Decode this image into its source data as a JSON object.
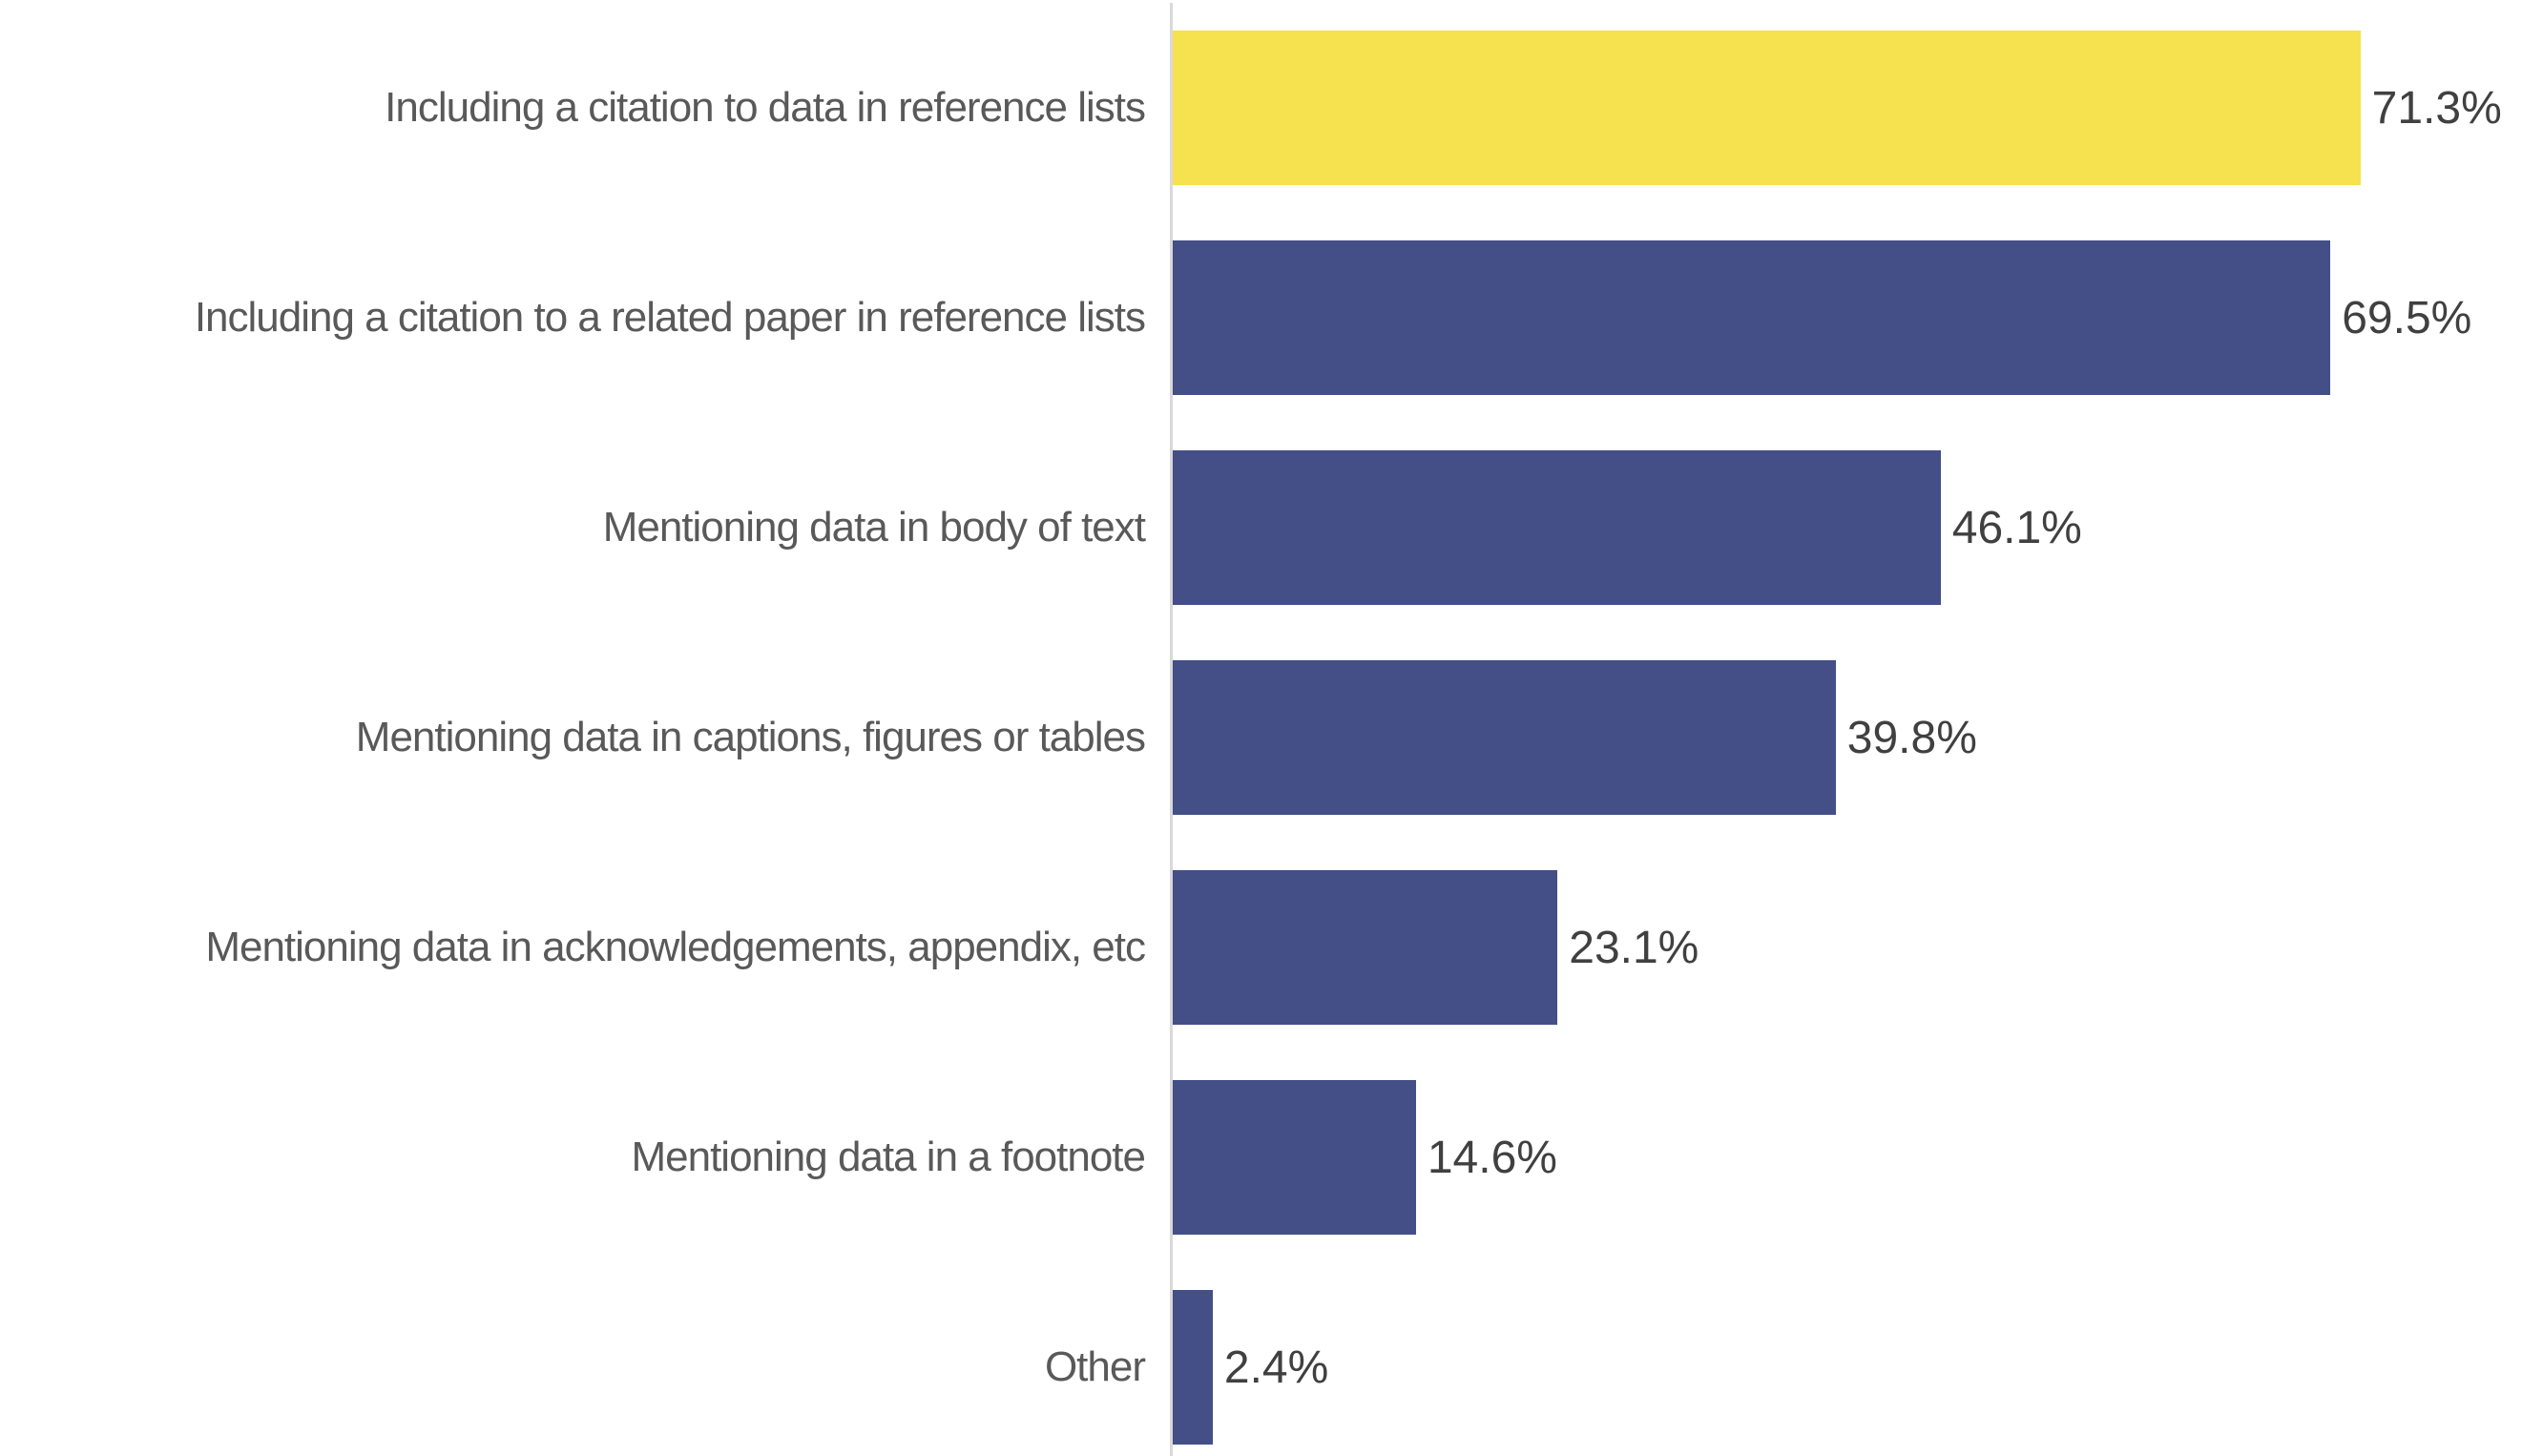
{
  "chart_data": {
    "type": "bar",
    "orientation": "horizontal",
    "title": "",
    "xlabel": "",
    "ylabel": "",
    "xlim": [
      0,
      81
    ],
    "grid": false,
    "legend": false,
    "categories": [
      "Including a citation to data in reference lists",
      "Including a citation to a related paper in reference lists",
      "Mentioning data in body of text",
      "Mentioning data in captions, figures or tables",
      "Mentioning data in acknowledgements, appendix, etc",
      "Mentioning data in a footnote",
      "Other"
    ],
    "values": [
      71.3,
      69.5,
      46.1,
      39.8,
      23.1,
      14.6,
      2.4
    ],
    "value_labels": [
      "71.3%",
      "69.5%",
      "46.1%",
      "39.8%",
      "23.1%",
      "14.6%",
      "2.4%"
    ],
    "highlight_index": 0,
    "colors": {
      "highlight_bar": "#F6E14E",
      "default_bar": "#434F86",
      "axis_line": "#D9D9D9",
      "category_text": "#595959",
      "value_text": "#404040",
      "background": "#FFFFFF"
    }
  }
}
